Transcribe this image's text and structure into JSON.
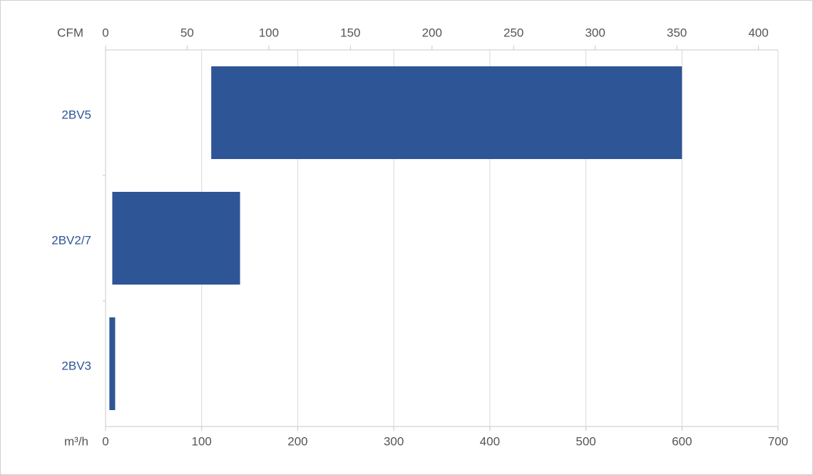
{
  "chart_data": {
    "type": "range-bar",
    "categories": [
      "2BV5",
      "2BV2/7",
      "2BV3"
    ],
    "low": [
      110,
      7,
      4
    ],
    "high": [
      600,
      140,
      10
    ],
    "color": "#2e5596",
    "xlabel": "m³/h",
    "xlim": [
      0,
      700
    ],
    "xticks": [
      0,
      100,
      200,
      300,
      400,
      500,
      600,
      700
    ],
    "x2label": "CFM",
    "x2lim": [
      0,
      412
    ],
    "x2ticks": [
      0,
      50,
      100,
      150,
      200,
      250,
      300,
      350,
      400
    ],
    "grid": true
  }
}
